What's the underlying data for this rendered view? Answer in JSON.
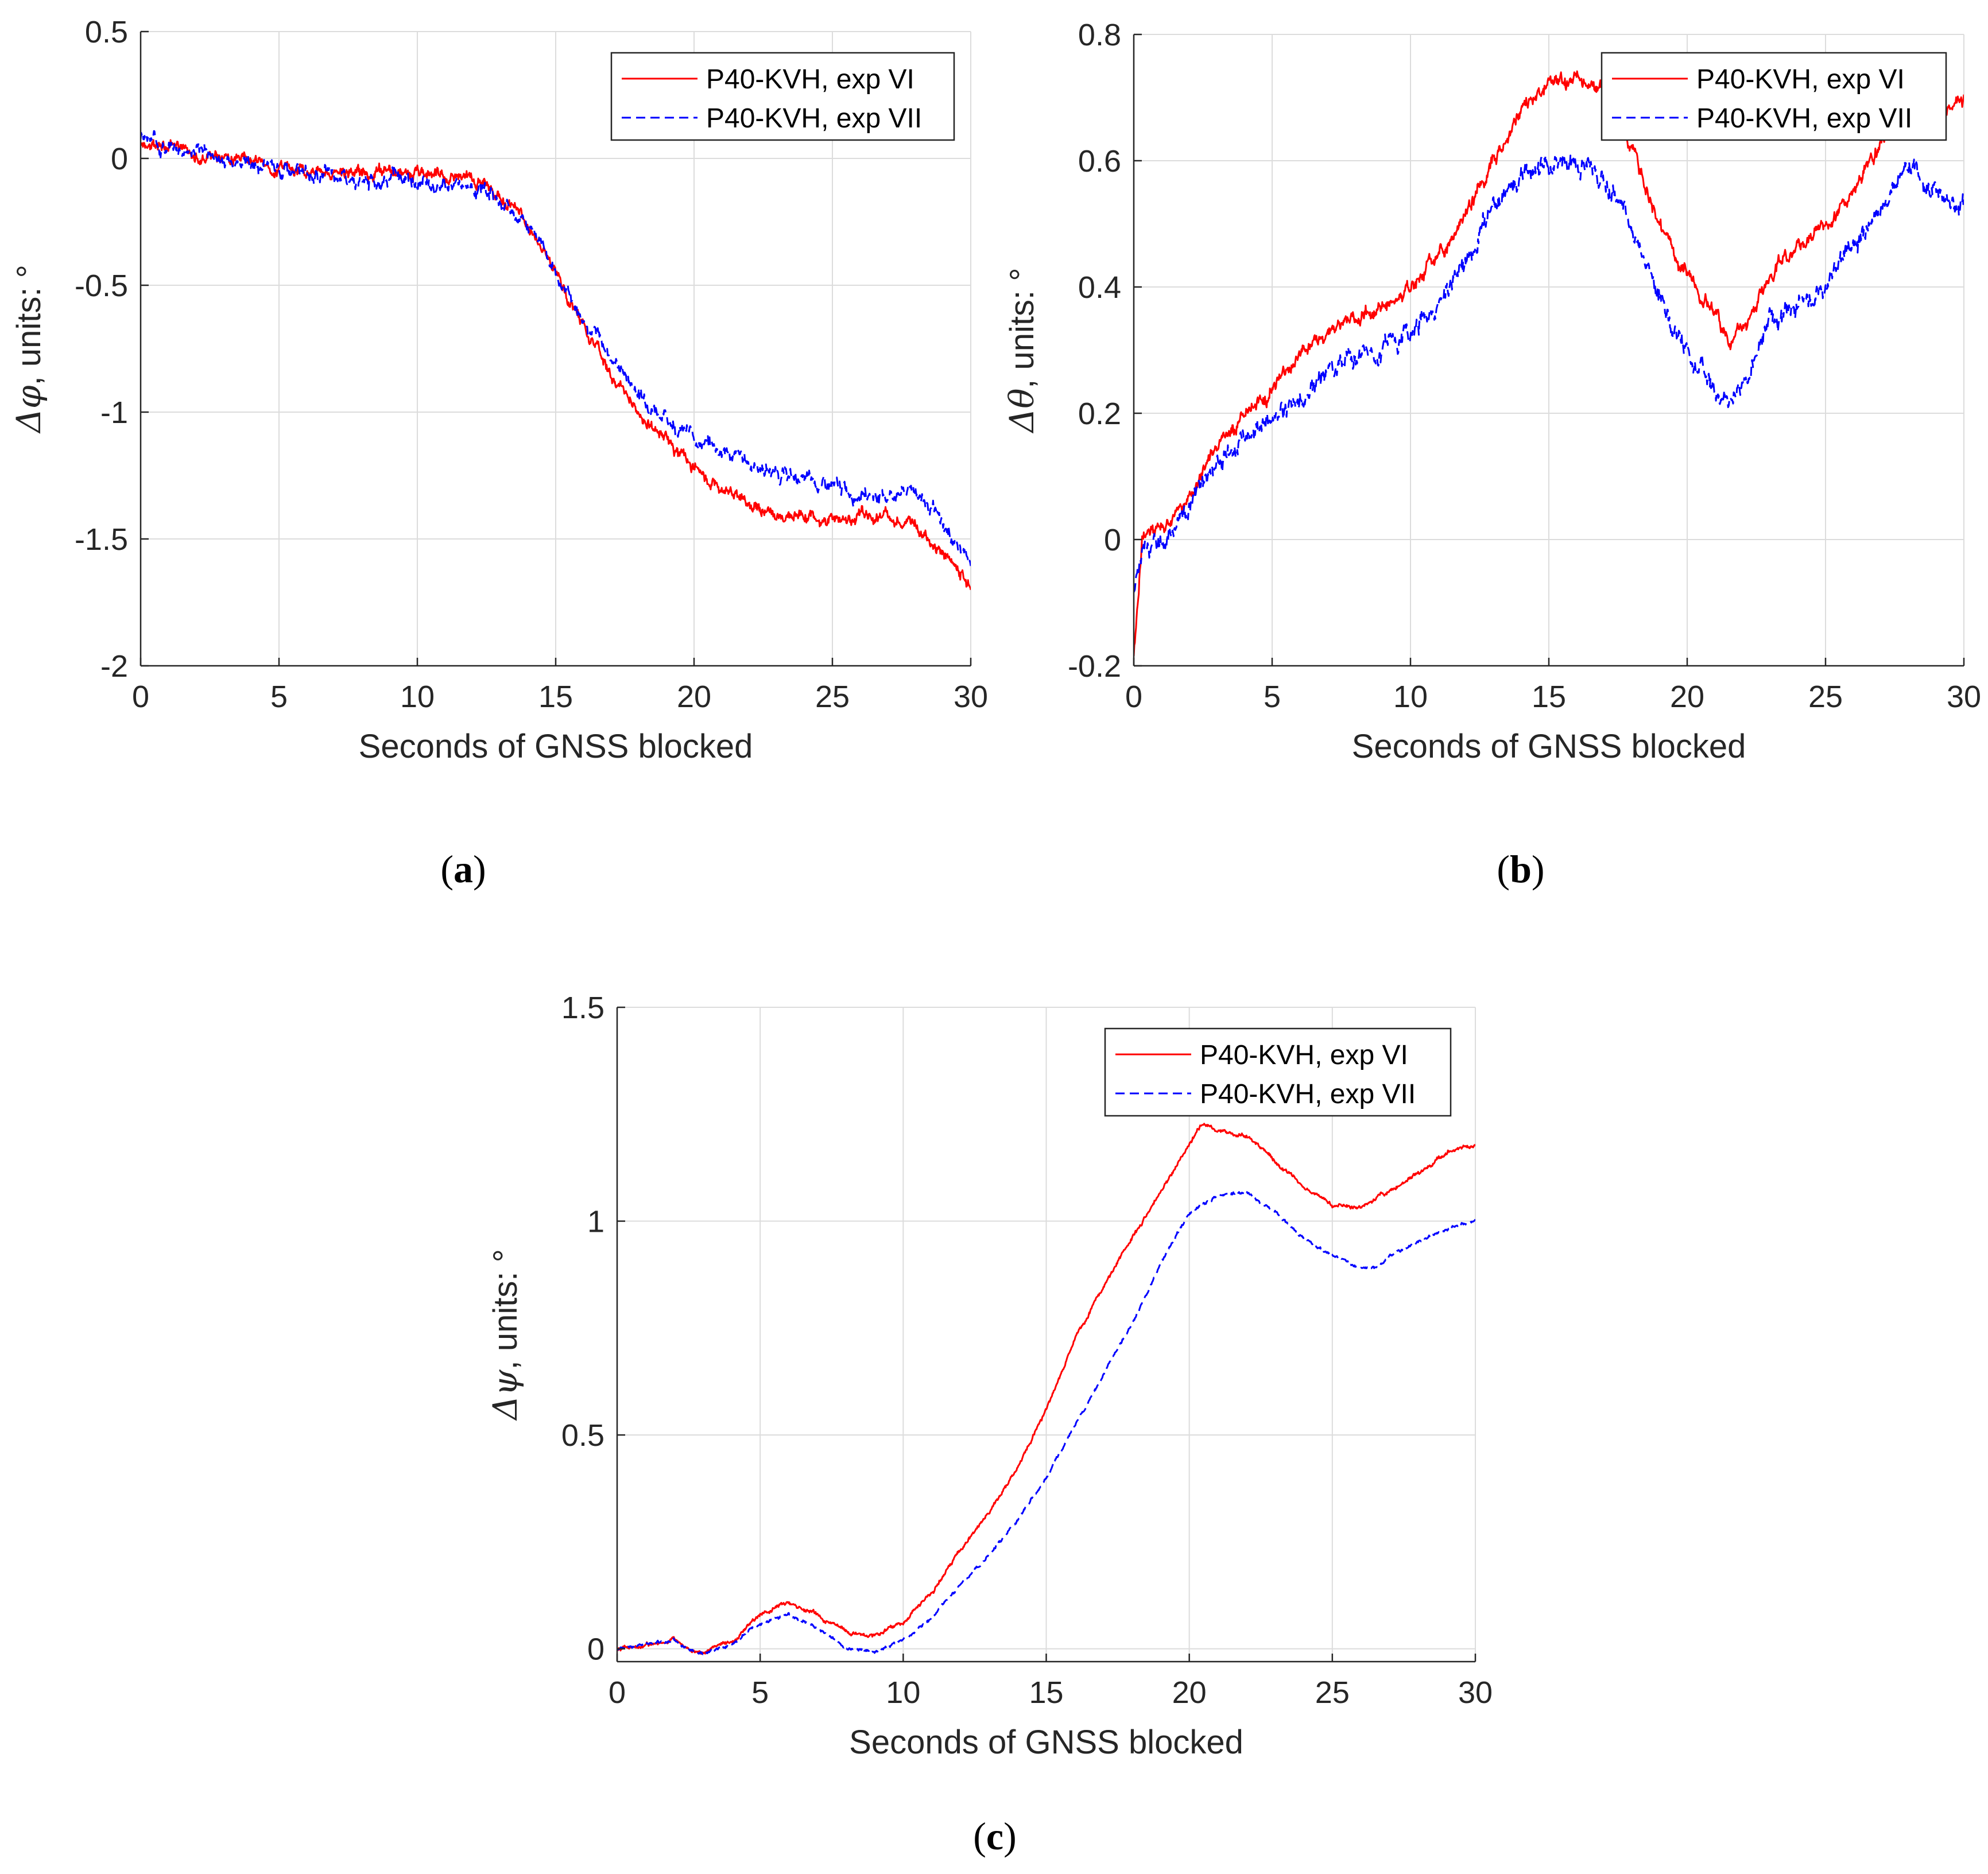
{
  "figure": {
    "captions": [
      "(a)",
      "(b)",
      "(c)"
    ]
  },
  "chart_data": [
    {
      "id": "a",
      "type": "line",
      "caption_letter": "a",
      "xlabel": "Seconds of GNSS blocked",
      "ylabel_symbol": "Δφ",
      "ylabel_text": ", units: °",
      "xlim": [
        0,
        30
      ],
      "ylim": [
        -2,
        0.5
      ],
      "xticks": [
        0,
        5,
        10,
        15,
        20,
        25,
        30
      ],
      "yticks": [
        -2,
        -1.5,
        -1,
        -0.5,
        0,
        0.5
      ],
      "grid": true,
      "legend": "top-right",
      "series": [
        {
          "name": "P40-KVH, exp VI",
          "color": "#ff0000",
          "dash": "solid",
          "noise": 0.025,
          "x": [
            0,
            2,
            4,
            6,
            8,
            10,
            12,
            13,
            14,
            15,
            16,
            17,
            18,
            19,
            20,
            21,
            22,
            23,
            24,
            25,
            26,
            27,
            28,
            29,
            30
          ],
          "y": [
            0.07,
            0.02,
            -0.03,
            -0.05,
            -0.06,
            -0.06,
            -0.07,
            -0.15,
            -0.25,
            -0.45,
            -0.65,
            -0.85,
            -1.0,
            -1.12,
            -1.22,
            -1.3,
            -1.36,
            -1.4,
            -1.4,
            -1.42,
            -1.42,
            -1.41,
            -1.45,
            -1.55,
            -1.68
          ]
        },
        {
          "name": "P40-KVH, exp VII",
          "color": "#0000ff",
          "dash": "dashed",
          "noise": 0.03,
          "x": [
            0,
            2,
            4,
            6,
            8,
            10,
            12,
            13,
            14,
            15,
            16,
            17,
            18,
            19,
            20,
            21,
            22,
            23,
            24,
            25,
            26,
            27,
            28,
            29,
            30
          ],
          "y": [
            0.08,
            0.03,
            -0.03,
            -0.06,
            -0.08,
            -0.1,
            -0.1,
            -0.18,
            -0.27,
            -0.45,
            -0.62,
            -0.78,
            -0.92,
            -1.02,
            -1.1,
            -1.15,
            -1.2,
            -1.24,
            -1.27,
            -1.3,
            -1.32,
            -1.33,
            -1.3,
            -1.45,
            -1.6
          ]
        }
      ]
    },
    {
      "id": "b",
      "type": "line",
      "caption_letter": "b",
      "xlabel": "Seconds of GNSS blocked",
      "ylabel_symbol": "Δθ",
      "ylabel_text": ", units: °",
      "xlim": [
        0,
        30
      ],
      "ylim": [
        -0.2,
        0.8
      ],
      "xticks": [
        0,
        5,
        10,
        15,
        20,
        25,
        30
      ],
      "yticks": [
        -0.2,
        0,
        0.2,
        0.4,
        0.6,
        0.8
      ],
      "grid": true,
      "legend": "top-right",
      "series": [
        {
          "name": "P40-KVH, exp VI",
          "color": "#ff0000",
          "dash": "solid",
          "noise": 0.012,
          "x": [
            0,
            0.3,
            1,
            2,
            3,
            4,
            5,
            6,
            7,
            8,
            9,
            10,
            11,
            12,
            13,
            14,
            15,
            16,
            17,
            18,
            19,
            20,
            21,
            21.5,
            22,
            23,
            24,
            25,
            26,
            27,
            28,
            29,
            30
          ],
          "y": [
            -0.18,
            0.0,
            0.02,
            0.06,
            0.16,
            0.2,
            0.24,
            0.3,
            0.32,
            0.35,
            0.37,
            0.4,
            0.45,
            0.52,
            0.6,
            0.68,
            0.72,
            0.73,
            0.7,
            0.62,
            0.5,
            0.42,
            0.36,
            0.31,
            0.34,
            0.42,
            0.47,
            0.5,
            0.55,
            0.62,
            0.72,
            0.68,
            0.7
          ]
        },
        {
          "name": "P40-KVH, exp VII",
          "color": "#0000ff",
          "dash": "dashed",
          "noise": 0.016,
          "x": [
            0,
            0.3,
            1,
            2,
            3,
            4,
            5,
            6,
            7,
            8,
            9,
            10,
            11,
            12,
            13,
            14,
            15,
            16,
            17,
            18,
            19,
            20,
            21,
            21.5,
            22,
            23,
            24,
            25,
            26,
            27,
            28,
            29,
            30
          ],
          "y": [
            -0.08,
            -0.02,
            0.0,
            0.05,
            0.12,
            0.17,
            0.19,
            0.23,
            0.26,
            0.28,
            0.3,
            0.33,
            0.37,
            0.44,
            0.52,
            0.58,
            0.6,
            0.6,
            0.57,
            0.5,
            0.38,
            0.3,
            0.24,
            0.21,
            0.25,
            0.34,
            0.37,
            0.4,
            0.47,
            0.53,
            0.6,
            0.55,
            0.52
          ]
        }
      ]
    },
    {
      "id": "c",
      "type": "line",
      "caption_letter": "c",
      "xlabel": "Seconds of GNSS blocked",
      "ylabel_symbol": "Δψ",
      "ylabel_text": ", units: °",
      "xlim": [
        0,
        30
      ],
      "ylim": [
        -0.03,
        1.5
      ],
      "xticks": [
        0,
        5,
        10,
        15,
        20,
        25,
        30
      ],
      "yticks": [
        0,
        0.5,
        1,
        1.5
      ],
      "ytick_labels": [
        "0",
        "0.5",
        "1",
        "1.5"
      ],
      "grid": true,
      "legend": "top-right",
      "series": [
        {
          "name": "P40-KVH, exp VI",
          "color": "#ff0000",
          "dash": "solid",
          "noise": 0.005,
          "x": [
            0,
            1,
            2,
            2.5,
            3,
            4,
            5,
            6,
            7,
            8,
            9,
            10,
            11,
            12,
            13,
            14,
            15,
            16,
            17,
            18,
            19,
            20,
            20.5,
            21,
            22,
            23,
            24,
            25,
            26,
            27,
            28,
            29,
            30
          ],
          "y": [
            0.0,
            0.01,
            0.02,
            0.0,
            -0.01,
            0.02,
            0.08,
            0.11,
            0.08,
            0.04,
            0.03,
            0.06,
            0.13,
            0.23,
            0.32,
            0.42,
            0.56,
            0.72,
            0.85,
            0.96,
            1.07,
            1.18,
            1.23,
            1.21,
            1.2,
            1.14,
            1.08,
            1.04,
            1.03,
            1.07,
            1.11,
            1.16,
            1.18
          ]
        },
        {
          "name": "P40-KVH, exp VII",
          "color": "#0000ff",
          "dash": "dashed",
          "noise": 0.004,
          "x": [
            0,
            1,
            2,
            2.5,
            3,
            4,
            5,
            6,
            7,
            8,
            9,
            10,
            11,
            12,
            13,
            14,
            15,
            16,
            17,
            18,
            19,
            20,
            21,
            22,
            23,
            24,
            25,
            26,
            26.5,
            27,
            28,
            29,
            30
          ],
          "y": [
            0.0,
            0.01,
            0.02,
            0.0,
            -0.01,
            0.01,
            0.06,
            0.08,
            0.05,
            0.0,
            -0.01,
            0.02,
            0.07,
            0.15,
            0.22,
            0.3,
            0.4,
            0.52,
            0.64,
            0.76,
            0.9,
            1.02,
            1.06,
            1.07,
            1.02,
            0.96,
            0.92,
            0.89,
            0.89,
            0.92,
            0.95,
            0.98,
            1.0
          ]
        }
      ]
    }
  ]
}
